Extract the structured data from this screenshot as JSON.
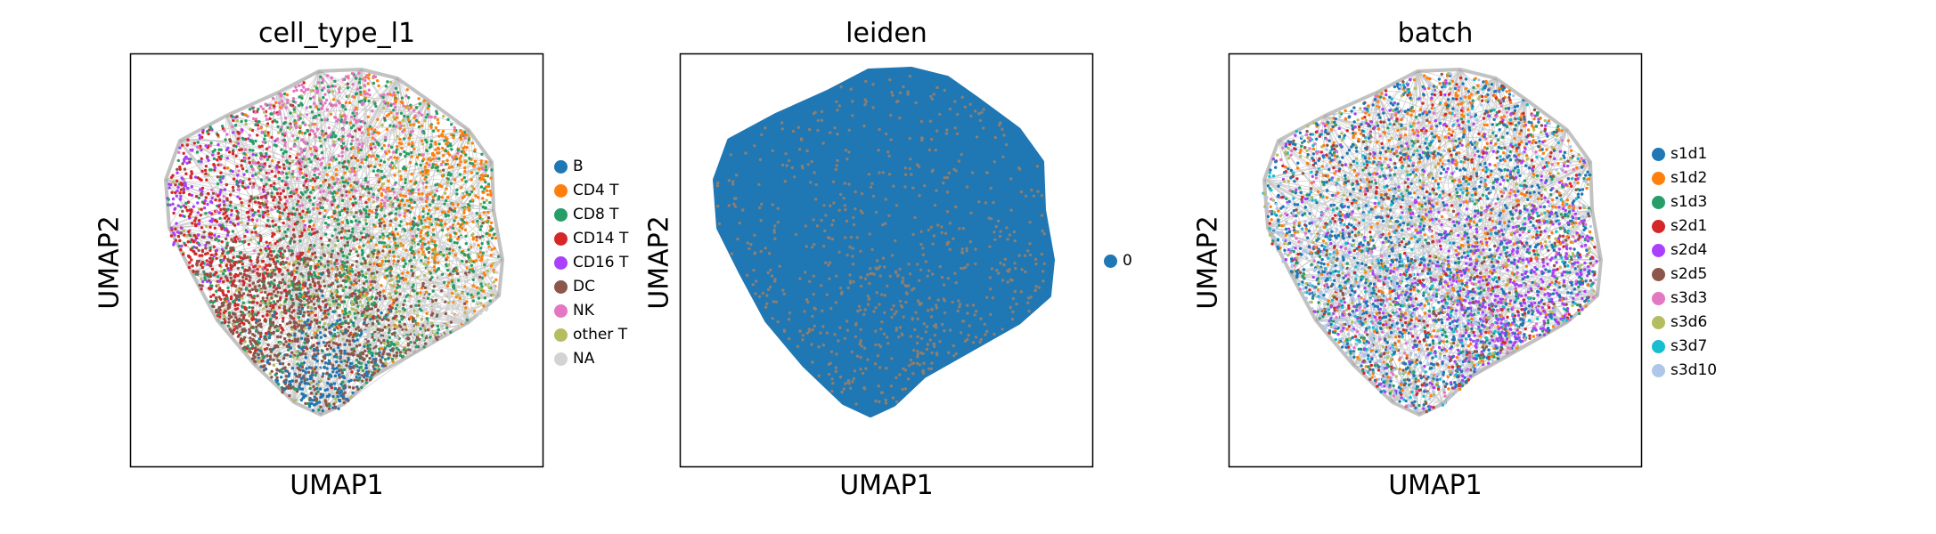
{
  "chart_data": [
    {
      "type": "scatter",
      "title": "cell_type_l1",
      "xlabel": "UMAP1",
      "ylabel": "UMAP2",
      "grid": false,
      "ticks": false,
      "legend_position": "right",
      "legend": [
        {
          "label": "B",
          "color": "#1f77b4"
        },
        {
          "label": "CD4 T",
          "color": "#ff7f0e"
        },
        {
          "label": "CD8 T",
          "color": "#279e68"
        },
        {
          "label": "CD14 T",
          "color": "#d62728"
        },
        {
          "label": "CD16 T",
          "color": "#aa40fc"
        },
        {
          "label": "DC",
          "color": "#8c564b"
        },
        {
          "label": "NK",
          "color": "#e377c2"
        },
        {
          "label": "other T",
          "color": "#b5bd61"
        },
        {
          "label": "NA",
          "color": "#d3d3d3"
        }
      ]
    },
    {
      "type": "scatter",
      "title": "leiden",
      "xlabel": "UMAP1",
      "ylabel": "UMAP2",
      "grid": false,
      "ticks": false,
      "legend_position": "right",
      "legend": [
        {
          "label": "0",
          "color": "#1f77b4"
        }
      ]
    },
    {
      "type": "scatter",
      "title": "batch",
      "xlabel": "UMAP1",
      "ylabel": "UMAP2",
      "grid": false,
      "ticks": false,
      "legend_position": "right",
      "legend": [
        {
          "label": "s1d1",
          "color": "#1f77b4"
        },
        {
          "label": "s1d2",
          "color": "#ff7f0e"
        },
        {
          "label": "s1d3",
          "color": "#279e68"
        },
        {
          "label": "s2d1",
          "color": "#d62728"
        },
        {
          "label": "s2d4",
          "color": "#aa40fc"
        },
        {
          "label": "s2d5",
          "color": "#8c564b"
        },
        {
          "label": "s3d3",
          "color": "#e377c2"
        },
        {
          "label": "s3d6",
          "color": "#b5bd61"
        },
        {
          "label": "s3d7",
          "color": "#17becf"
        },
        {
          "label": "s3d10",
          "color": "#aec7e8"
        }
      ]
    }
  ]
}
